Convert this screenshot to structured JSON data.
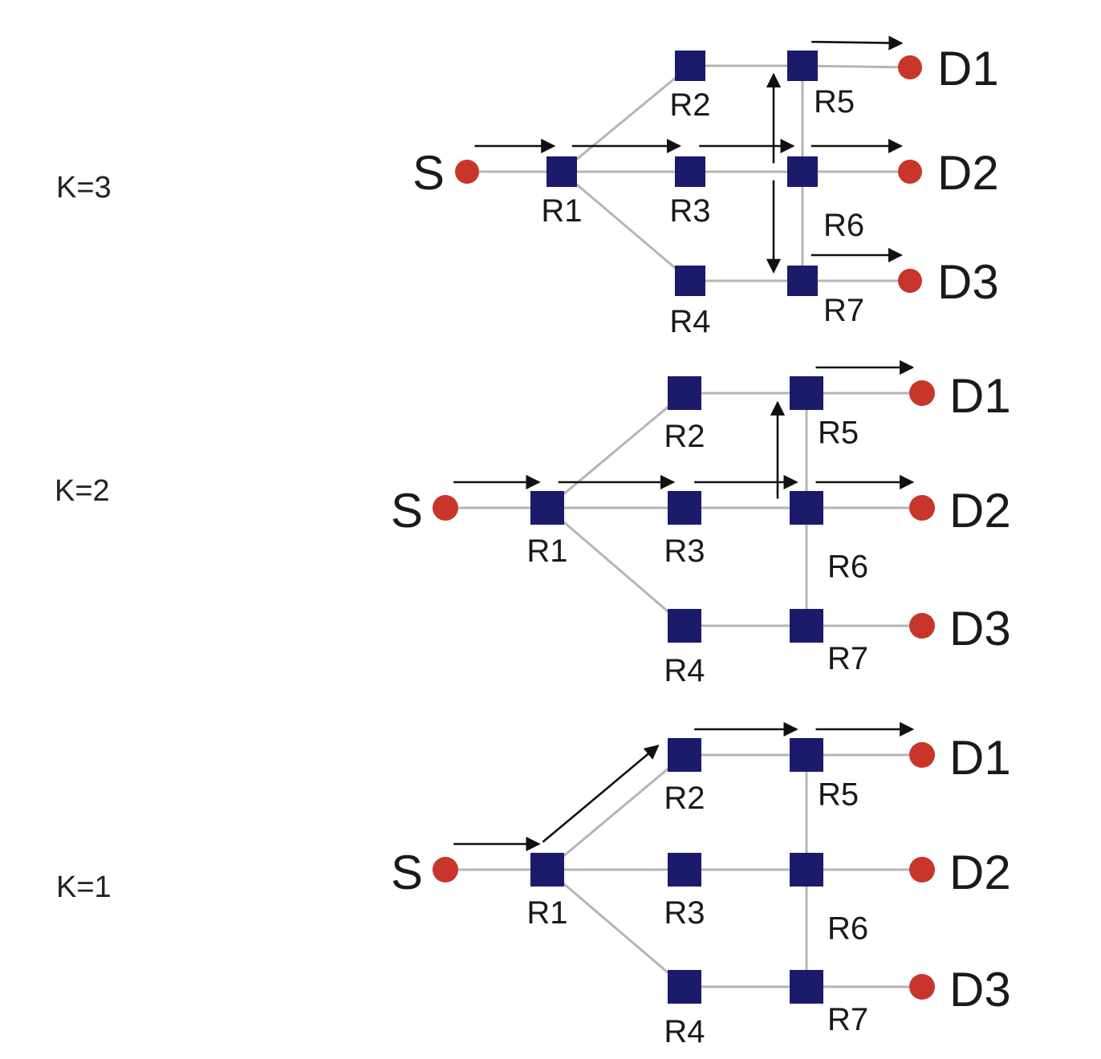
{
  "colors": {
    "router": "#1c1b6b",
    "endpoint": "#c8352a",
    "link": "#b5b5b5",
    "arrow": "#111111"
  },
  "nodes": {
    "source": "S",
    "routers": [
      "R1",
      "R2",
      "R3",
      "R4",
      "R5",
      "R6",
      "R7"
    ],
    "destinations": [
      "D1",
      "D2",
      "D3"
    ]
  },
  "links": [
    [
      "S",
      "R1"
    ],
    [
      "R1",
      "R2"
    ],
    [
      "R1",
      "R3"
    ],
    [
      "R1",
      "R4"
    ],
    [
      "R2",
      "R5"
    ],
    [
      "R3",
      "R6"
    ],
    [
      "R4",
      "R7"
    ],
    [
      "R5",
      "R6"
    ],
    [
      "R6",
      "R7"
    ],
    [
      "R5",
      "D1"
    ],
    [
      "R6",
      "D2"
    ],
    [
      "R7",
      "D3"
    ]
  ],
  "panels": [
    {
      "k_label": "K=3",
      "flows": [
        [
          "S",
          "R1"
        ],
        [
          "R1",
          "R3"
        ],
        [
          "R3",
          "R6"
        ],
        [
          "R6",
          "R5"
        ],
        [
          "R6",
          "R7"
        ],
        [
          "R5",
          "D1"
        ],
        [
          "R6",
          "D2"
        ],
        [
          "R7",
          "D3"
        ]
      ]
    },
    {
      "k_label": "K=2",
      "flows": [
        [
          "S",
          "R1"
        ],
        [
          "R1",
          "R3"
        ],
        [
          "R3",
          "R6"
        ],
        [
          "R6",
          "R5"
        ],
        [
          "R5",
          "D1"
        ],
        [
          "R6",
          "D2"
        ]
      ]
    },
    {
      "k_label": "K=1",
      "flows": [
        [
          "S",
          "R1"
        ],
        [
          "R1",
          "R2"
        ],
        [
          "R2",
          "R5"
        ],
        [
          "R5",
          "D1"
        ]
      ]
    }
  ]
}
